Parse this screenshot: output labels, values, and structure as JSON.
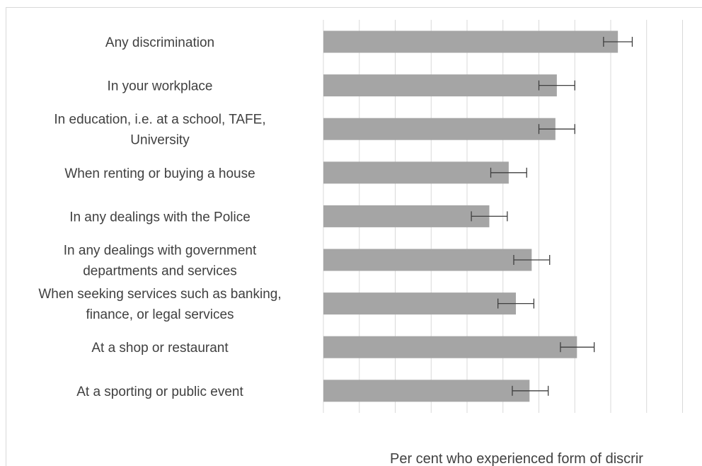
{
  "chart_data": {
    "type": "bar",
    "orientation": "horizontal",
    "categories": [
      [
        "Any discrimination"
      ],
      [
        "In your workplace"
      ],
      [
        "In education, i.e. at a school, TAFE,",
        "University"
      ],
      [
        "When renting or buying a house"
      ],
      [
        "In any dealings with the Police"
      ],
      [
        "In any dealings with government",
        "departments and services"
      ],
      [
        "When seeking services such as banking,",
        "finance, or legal services"
      ],
      [
        "At a shop or restaurant"
      ],
      [
        "At a sporting or public event"
      ]
    ],
    "values": [
      41,
      32.5,
      32.3,
      25.8,
      23.1,
      29,
      26.8,
      35.3,
      28.7
    ],
    "error_low": [
      39,
      30,
      30,
      23.3,
      20.6,
      26.5,
      24.3,
      33,
      26.3
    ],
    "error_high": [
      43,
      35,
      35,
      28.3,
      25.6,
      31.5,
      29.3,
      37.7,
      31.3
    ],
    "xlim": [
      0,
      50
    ],
    "xlabel": "Per cent who experienced form of discrir",
    "grid": true,
    "colors": {
      "bar": "#a5a5a5",
      "error": "#3f3f3f",
      "grid": "#d9d9d9",
      "text": "#404040"
    }
  }
}
